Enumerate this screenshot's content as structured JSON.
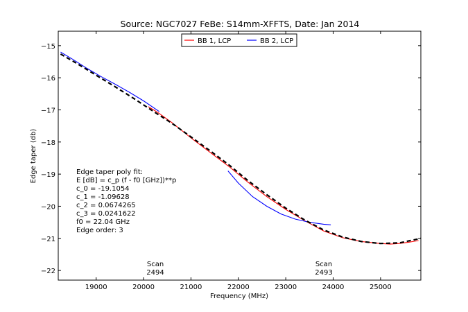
{
  "chart_data": {
    "type": "line",
    "title": "Source: NGC7027 FeBe: S14mm-XFFTS, Date: Jan 2014",
    "xlabel": "Frequency (MHz)",
    "ylabel": "Edge taper (db)",
    "xlim": [
      18200,
      25850
    ],
    "ylim": [
      -22.3,
      -14.55
    ],
    "xticks": [
      19000,
      20000,
      21000,
      22000,
      23000,
      24000,
      25000
    ],
    "yticks": [
      -15,
      -16,
      -17,
      -18,
      -19,
      -20,
      -21,
      -22
    ],
    "grid": false,
    "legend_position": "top-center",
    "series": [
      {
        "name": "BB 1, LCP",
        "color": "#ff0000",
        "style": "solid",
        "x": [
          20100,
          20300,
          20600,
          21000,
          21400,
          21800,
          22200,
          22600,
          23000,
          23400,
          23800,
          24200,
          24600,
          25000,
          25200,
          25400,
          25600,
          25800
        ],
        "y": [
          -16.9,
          -17.08,
          -17.4,
          -17.87,
          -18.32,
          -18.76,
          -19.25,
          -19.7,
          -20.1,
          -20.45,
          -20.77,
          -20.98,
          -21.1,
          -21.16,
          -21.18,
          -21.16,
          -21.12,
          -21.07
        ]
      },
      {
        "name": "BB 2, LCP",
        "color": "#0000ff",
        "style": "solid",
        "x": [
          18250,
          18500,
          18800,
          19100,
          19400,
          19700,
          20000,
          20330
        ],
        "y": [
          -15.2,
          -15.42,
          -15.7,
          -15.96,
          -16.2,
          -16.45,
          -16.72,
          -17.05
        ],
        "x2": [
          21780,
          22000,
          22300,
          22600,
          22900,
          23200,
          23500,
          23800,
          23950
        ],
        "y2": [
          -18.9,
          -19.28,
          -19.7,
          -20.0,
          -20.24,
          -20.4,
          -20.5,
          -20.56,
          -20.58
        ]
      },
      {
        "name": "",
        "color": "#000000",
        "style": "dashed",
        "x": [
          18250,
          18600,
          19000,
          19400,
          19800,
          20200,
          20600,
          21000,
          21400,
          21800,
          22200,
          22600,
          23000,
          23400,
          23800,
          24200,
          24600,
          25000,
          25400,
          25850
        ],
        "y": [
          -15.26,
          -15.56,
          -15.92,
          -16.28,
          -16.65,
          -17.04,
          -17.42,
          -17.84,
          -18.27,
          -18.71,
          -19.2,
          -19.64,
          -20.06,
          -20.43,
          -20.74,
          -20.96,
          -21.1,
          -21.16,
          -21.14,
          -21.0
        ]
      }
    ],
    "fit_text": {
      "lines": [
        "Edge taper poly fit:",
        "E [dB] = c_p (f - f0 [GHz])**p",
        "c_0 = -19.1054",
        "c_1 = -1.09628",
        "c_2 = 0.0674265",
        "c_3 = 0.0241622",
        "f0 = 22.04 GHz",
        "Edge order: 3"
      ]
    },
    "scan_annotations": [
      {
        "label": "Scan",
        "number": "2494",
        "x": 20200
      },
      {
        "label": "Scan",
        "number": "2493",
        "x": 23800
      }
    ]
  }
}
